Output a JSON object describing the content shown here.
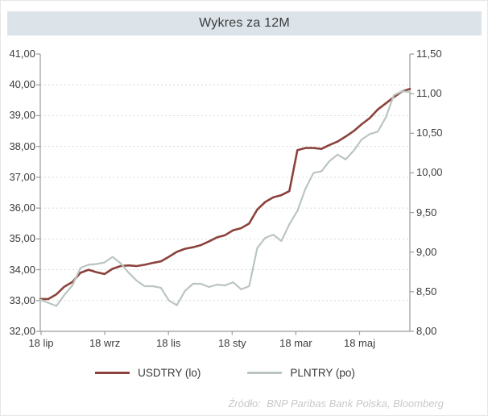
{
  "window": {
    "title": "Wykres za 12M"
  },
  "footer": {
    "source": "Źródło:  BNP Paribas Bank Polska, Bloomberg"
  },
  "legend": {
    "items": [
      {
        "label": "USDTRY (lo)",
        "color": "#8b423c"
      },
      {
        "label": "PLNTRY (po)",
        "color": "#bac5c1"
      }
    ]
  },
  "colors": {
    "title_bar_bg": "#dce4ea",
    "axis": "#9b9b9b",
    "gridline": "#d9d9d9",
    "label_text": "#3c3c3c",
    "source_text": "#c9c9c9",
    "usdtry_line": "#8b423c",
    "plntry_line": "#bac5c1"
  },
  "chart_data": {
    "type": "line",
    "title": "Wykres za 12M",
    "grid": "horizontal-dashed",
    "legend_position": "bottom",
    "x_axis": {
      "tick_labels": [
        "18 lip",
        "18 wrz",
        "18 lis",
        "18 sty",
        "18 mar",
        "18 maj"
      ]
    },
    "left_axis": {
      "min": 32,
      "max": 41,
      "tick_step": 1,
      "tick_labels": [
        "32,00",
        "33,00",
        "34,00",
        "35,00",
        "36,00",
        "37,00",
        "38,00",
        "39,00",
        "40,00",
        "41,00"
      ]
    },
    "right_axis": {
      "min": 8,
      "max": 11.5,
      "tick_step": 0.5,
      "tick_labels": [
        "8,00",
        "8,50",
        "9,00",
        "9,50",
        "10,00",
        "10,50",
        "11,00",
        "11,50"
      ]
    },
    "series": [
      {
        "name": "USDTRY (lo)",
        "axis": "left",
        "color": "#8b423c",
        "values": [
          33.05,
          33.05,
          33.2,
          33.45,
          33.6,
          33.9,
          34.0,
          33.92,
          33.86,
          34.03,
          34.12,
          34.14,
          34.12,
          34.16,
          34.22,
          34.27,
          34.42,
          34.58,
          34.68,
          34.73,
          34.8,
          34.92,
          35.05,
          35.12,
          35.28,
          35.35,
          35.5,
          35.95,
          36.2,
          36.35,
          36.42,
          36.55,
          37.88,
          37.95,
          37.95,
          37.92,
          38.05,
          38.16,
          38.32,
          38.5,
          38.72,
          38.92,
          39.2,
          39.4,
          39.6,
          39.78,
          39.87
        ]
      },
      {
        "name": "PLNTRY (po)",
        "axis": "right",
        "color": "#bac5c1",
        "values": [
          8.4,
          8.36,
          8.32,
          8.46,
          8.58,
          8.8,
          8.84,
          8.85,
          8.87,
          8.94,
          8.86,
          8.74,
          8.64,
          8.57,
          8.57,
          8.55,
          8.39,
          8.33,
          8.51,
          8.6,
          8.6,
          8.56,
          8.59,
          8.58,
          8.62,
          8.53,
          8.57,
          9.05,
          9.18,
          9.22,
          9.14,
          9.35,
          9.52,
          9.8,
          10.0,
          10.02,
          10.15,
          10.23,
          10.17,
          10.28,
          10.42,
          10.49,
          10.52,
          10.7,
          10.98,
          11.03,
          11.02
        ]
      }
    ]
  }
}
